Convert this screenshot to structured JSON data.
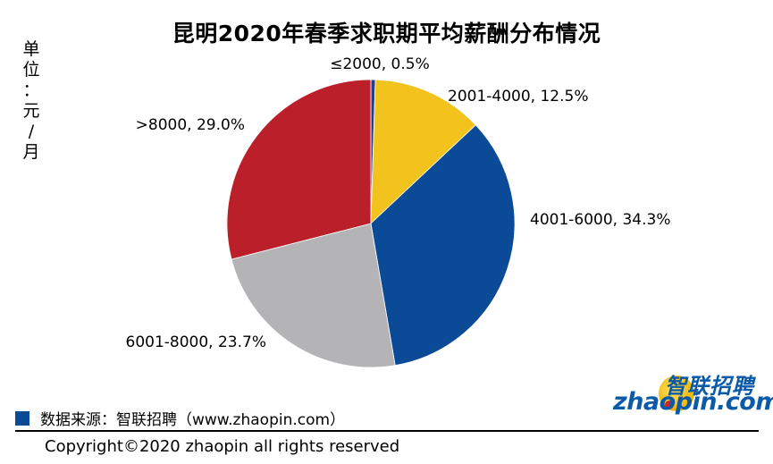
{
  "chart_data": {
    "type": "pie",
    "title": "昆明2020年春季求职期平均薪酬分布情况",
    "unit_label": "单位：元/月",
    "slices": [
      {
        "label": "≤2000, 0.5%",
        "category": "≤2000",
        "value": 0.5,
        "color": "#1f3f8f"
      },
      {
        "label": "2001-4000, 12.5%",
        "category": "2001-4000",
        "value": 12.5,
        "color": "#f2c31c"
      },
      {
        "label": "4001-6000, 34.3%",
        "category": "4001-6000",
        "value": 34.3,
        "color": "#0a4a96"
      },
      {
        "label": "6001-8000, 23.7%",
        "category": "6001-8000",
        "value": 23.7,
        "color": "#b4b4b6"
      },
      {
        "label": ">8000, 29.0%",
        "category": ">8000",
        "value": 29.0,
        "color": "#ba1f2a"
      }
    ]
  },
  "footer": {
    "source": "数据来源：智联招聘（www.zhaopin.com）",
    "copyright": "Copyright©2020 zhaopin all rights reserved"
  },
  "logo": {
    "cn": "智联招聘",
    "en": "zhaopin.com"
  },
  "colors": {
    "brand_blue": "#0a4a96",
    "brand_red": "#ba1f2a",
    "brand_yellow": "#f2c31c"
  }
}
